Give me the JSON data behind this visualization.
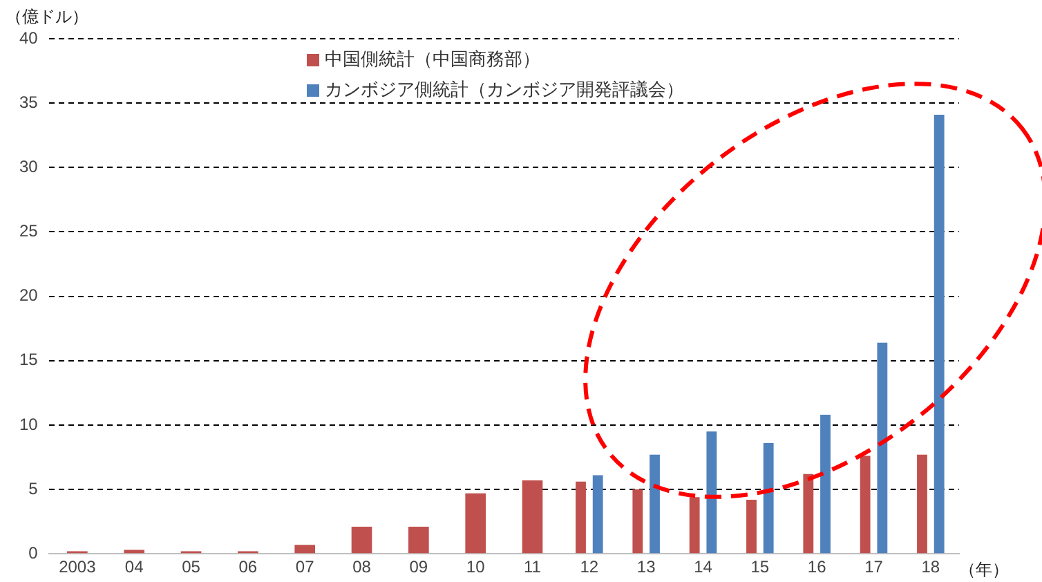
{
  "chart_data": {
    "type": "bar",
    "xlabel": "（年）",
    "ylabel": "（億ドル）",
    "categories": [
      "2003",
      "04",
      "05",
      "06",
      "07",
      "08",
      "09",
      "10",
      "11",
      "12",
      "13",
      "14",
      "15",
      "16",
      "17",
      "18"
    ],
    "series": [
      {
        "name": "中国側統計（中国商務部）",
        "color": "#c0504d",
        "values": [
          0.2,
          0.3,
          0.2,
          0.2,
          0.7,
          2.1,
          2.1,
          4.7,
          5.7,
          5.6,
          5.0,
          4.4,
          4.2,
          6.2,
          7.6,
          7.7
        ]
      },
      {
        "name": "カンボジア側統計（カンボジア開発評議会）",
        "color": "#4f81bd",
        "values": [
          null,
          null,
          null,
          null,
          null,
          null,
          null,
          null,
          null,
          6.1,
          7.7,
          9.5,
          8.6,
          10.8,
          16.4,
          34.1
        ]
      }
    ],
    "ylim": [
      0,
      40
    ],
    "yticks": [
      0,
      5,
      10,
      15,
      20,
      25,
      30,
      35,
      40
    ],
    "grid": "y",
    "legend": "top"
  }
}
